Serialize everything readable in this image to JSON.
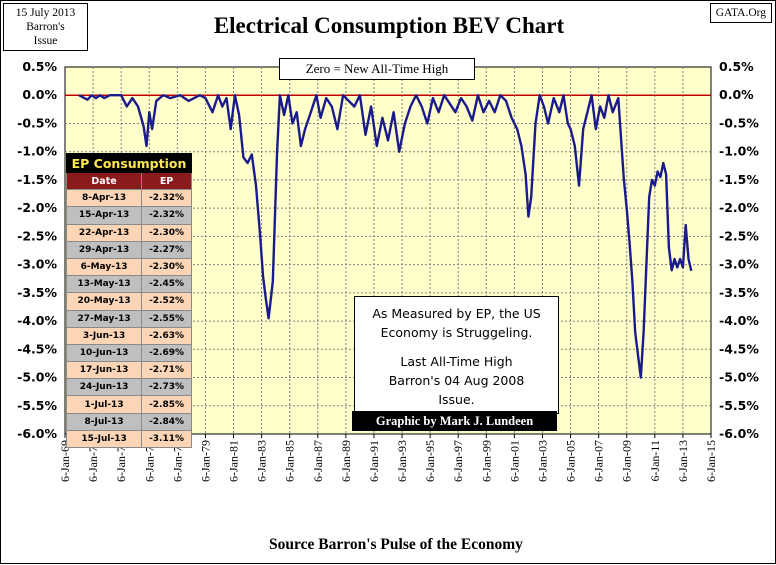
{
  "header": {
    "corner_left_line1": "15 July 2013",
    "corner_left_line2": "Barron's",
    "corner_left_line3": "Issue",
    "corner_right": "GATA.Org"
  },
  "chart_data": {
    "type": "line",
    "title": "Electrical Consumption BEV Chart",
    "xlabel": "Source Barron's Pulse of the Economy",
    "ylabel": "",
    "ylim": [
      -6.0,
      0.5
    ],
    "yticks": [
      "0.5%",
      "0.0%",
      "-0.5%",
      "-1.0%",
      "-1.5%",
      "-2.0%",
      "-2.5%",
      "-3.0%",
      "-3.5%",
      "-4.0%",
      "-4.5%",
      "-5.0%",
      "-5.5%",
      "-6.0%"
    ],
    "yticks_right": [
      "0.5%",
      "0.0%",
      "-0.5%",
      "-1.0%",
      "-1.5%",
      "-2.0%",
      "-2.5%",
      "-3.0%",
      "-3.5%",
      "-4.0%",
      "-4.5%",
      "-5.0%",
      "-5.5%",
      "-6.0%"
    ],
    "xlim": [
      1969.0,
      2015.0
    ],
    "xticks": [
      "6-Jan-69",
      "6-Jan-71",
      "6-Jan-73",
      "6-Jan-75",
      "6-Jan-77",
      "6-Jan-79",
      "6-Jan-81",
      "6-Jan-83",
      "6-Jan-85",
      "6-Jan-87",
      "6-Jan-89",
      "6-Jan-91",
      "6-Jan-93",
      "6-Jan-95",
      "6-Jan-97",
      "6-Jan-99",
      "6-Jan-01",
      "6-Jan-03",
      "6-Jan-05",
      "6-Jan-07",
      "6-Jan-09",
      "6-Jan-11",
      "6-Jan-13",
      "6-Jan-15"
    ],
    "zero_line_label": "Zero = New All-Time High",
    "grid": true,
    "colors": {
      "plot_bg": "#ffffcc",
      "series": "#1a1a8c",
      "zero_line": "#c00000",
      "grid": "#808080"
    },
    "series": [
      {
        "x": [
          1970.0,
          1970.6,
          1970.9,
          1971.2,
          1971.5,
          1971.8,
          1972.2,
          1973.0,
          1973.4,
          1973.8,
          1974.2,
          1974.6,
          1974.8,
          1975.0,
          1975.2,
          1975.5,
          1976.0,
          1976.5,
          1977.2,
          1977.8,
          1978.2,
          1978.6,
          1979.0,
          1979.5,
          1979.9,
          1980.2,
          1980.5,
          1980.8,
          1981.1,
          1981.4,
          1981.7,
          1982.0,
          1982.3,
          1982.6,
          1982.9,
          1983.1,
          1983.3,
          1983.5,
          1983.8,
          1984.1,
          1984.3,
          1984.6,
          1984.9,
          1985.2,
          1985.5,
          1985.8,
          1986.1,
          1986.5,
          1986.9,
          1987.2,
          1987.6,
          1988.0,
          1988.4,
          1988.8,
          1989.2,
          1989.6,
          1990.0,
          1990.4,
          1990.8,
          1991.2,
          1991.6,
          1992.0,
          1992.4,
          1992.8,
          1993.2,
          1993.6,
          1994.0,
          1994.4,
          1994.8,
          1995.2,
          1995.6,
          1996.0,
          1996.4,
          1996.8,
          1997.2,
          1997.6,
          1998.0,
          1998.4,
          1998.8,
          1999.2,
          1999.6,
          2000.0,
          2000.4,
          2000.8,
          2001.2,
          2001.5,
          2001.8,
          2002.0,
          2002.2,
          2002.5,
          2002.8,
          2003.1,
          2003.4,
          2003.8,
          2004.2,
          2004.5,
          2004.8,
          2005.0,
          2005.3,
          2005.6,
          2005.9,
          2006.2,
          2006.5,
          2006.8,
          2007.1,
          2007.4,
          2007.7,
          2008.0,
          2008.4,
          2008.8,
          2009.0,
          2009.2,
          2009.4,
          2009.6,
          2009.8,
          2010.0,
          2010.2,
          2010.4,
          2010.6,
          2010.8,
          2011.0,
          2011.2,
          2011.4,
          2011.6,
          2011.8,
          2012.0,
          2012.2,
          2012.4,
          2012.6,
          2012.8,
          2013.0,
          2013.2,
          2013.4,
          2013.6
        ],
        "y": [
          0.0,
          -0.08,
          0.0,
          -0.05,
          0.0,
          -0.05,
          0.0,
          0.0,
          -0.2,
          -0.05,
          -0.2,
          -0.55,
          -0.9,
          -0.3,
          -0.6,
          -0.1,
          0.0,
          -0.05,
          0.0,
          -0.1,
          -0.05,
          0.0,
          -0.05,
          -0.3,
          0.0,
          -0.2,
          -0.05,
          -0.6,
          0.0,
          -0.35,
          -1.1,
          -1.2,
          -1.05,
          -1.6,
          -2.5,
          -3.2,
          -3.6,
          -3.95,
          -3.3,
          -1.0,
          0.0,
          -0.35,
          0.0,
          -0.5,
          -0.3,
          -0.9,
          -0.6,
          -0.3,
          0.0,
          -0.4,
          -0.05,
          -0.2,
          -0.6,
          0.0,
          -0.1,
          -0.2,
          0.0,
          -0.7,
          -0.2,
          -0.9,
          -0.4,
          -0.8,
          -0.3,
          -1.0,
          -0.5,
          -0.2,
          0.0,
          -0.2,
          -0.5,
          -0.05,
          -0.3,
          0.0,
          -0.15,
          -0.3,
          -0.05,
          -0.2,
          -0.45,
          0.0,
          -0.3,
          -0.1,
          -0.3,
          0.0,
          -0.1,
          -0.4,
          -0.6,
          -0.9,
          -1.4,
          -2.15,
          -1.8,
          -0.5,
          0.0,
          -0.2,
          -0.5,
          -0.05,
          -0.3,
          0.0,
          -0.5,
          -0.6,
          -0.9,
          -1.6,
          -0.6,
          -0.3,
          0.0,
          -0.6,
          -0.2,
          -0.4,
          0.0,
          -0.3,
          -0.05,
          -1.5,
          -2.0,
          -2.6,
          -3.3,
          -4.2,
          -4.6,
          -5.0,
          -4.2,
          -3.0,
          -1.8,
          -1.5,
          -1.6,
          -1.35,
          -1.45,
          -1.2,
          -1.4,
          -2.7,
          -3.1,
          -2.9,
          -3.05,
          -2.9,
          -3.05,
          -2.3,
          -2.9,
          -3.11
        ]
      }
    ]
  },
  "ep_table": {
    "title": "EP Consumption",
    "col_date": "Date",
    "col_ep": "EP",
    "rows": [
      {
        "date": "8-Apr-13",
        "ep": "-2.32%"
      },
      {
        "date": "15-Apr-13",
        "ep": "-2.32%"
      },
      {
        "date": "22-Apr-13",
        "ep": "-2.30%"
      },
      {
        "date": "29-Apr-13",
        "ep": "-2.27%"
      },
      {
        "date": "6-May-13",
        "ep": "-2.30%"
      },
      {
        "date": "13-May-13",
        "ep": "-2.45%"
      },
      {
        "date": "20-May-13",
        "ep": "-2.52%"
      },
      {
        "date": "27-May-13",
        "ep": "-2.55%"
      },
      {
        "date": "3-Jun-13",
        "ep": "-2.63%"
      },
      {
        "date": "10-Jun-13",
        "ep": "-2.69%"
      },
      {
        "date": "17-Jun-13",
        "ep": "-2.71%"
      },
      {
        "date": "24-Jun-13",
        "ep": "-2.73%"
      },
      {
        "date": "1-Jul-13",
        "ep": "-2.85%"
      },
      {
        "date": "8-Jul-13",
        "ep": "-2.84%"
      },
      {
        "date": "15-Jul-13",
        "ep": "-3.11%"
      }
    ]
  },
  "note": {
    "line1": "As Measured by EP, the US",
    "line2": "Economy is Struggeling.",
    "line3": "Last All-Time High",
    "line4": "Barron's 04 Aug 2008",
    "line5": "Issue."
  },
  "credit": "Graphic by Mark J. Lundeen"
}
